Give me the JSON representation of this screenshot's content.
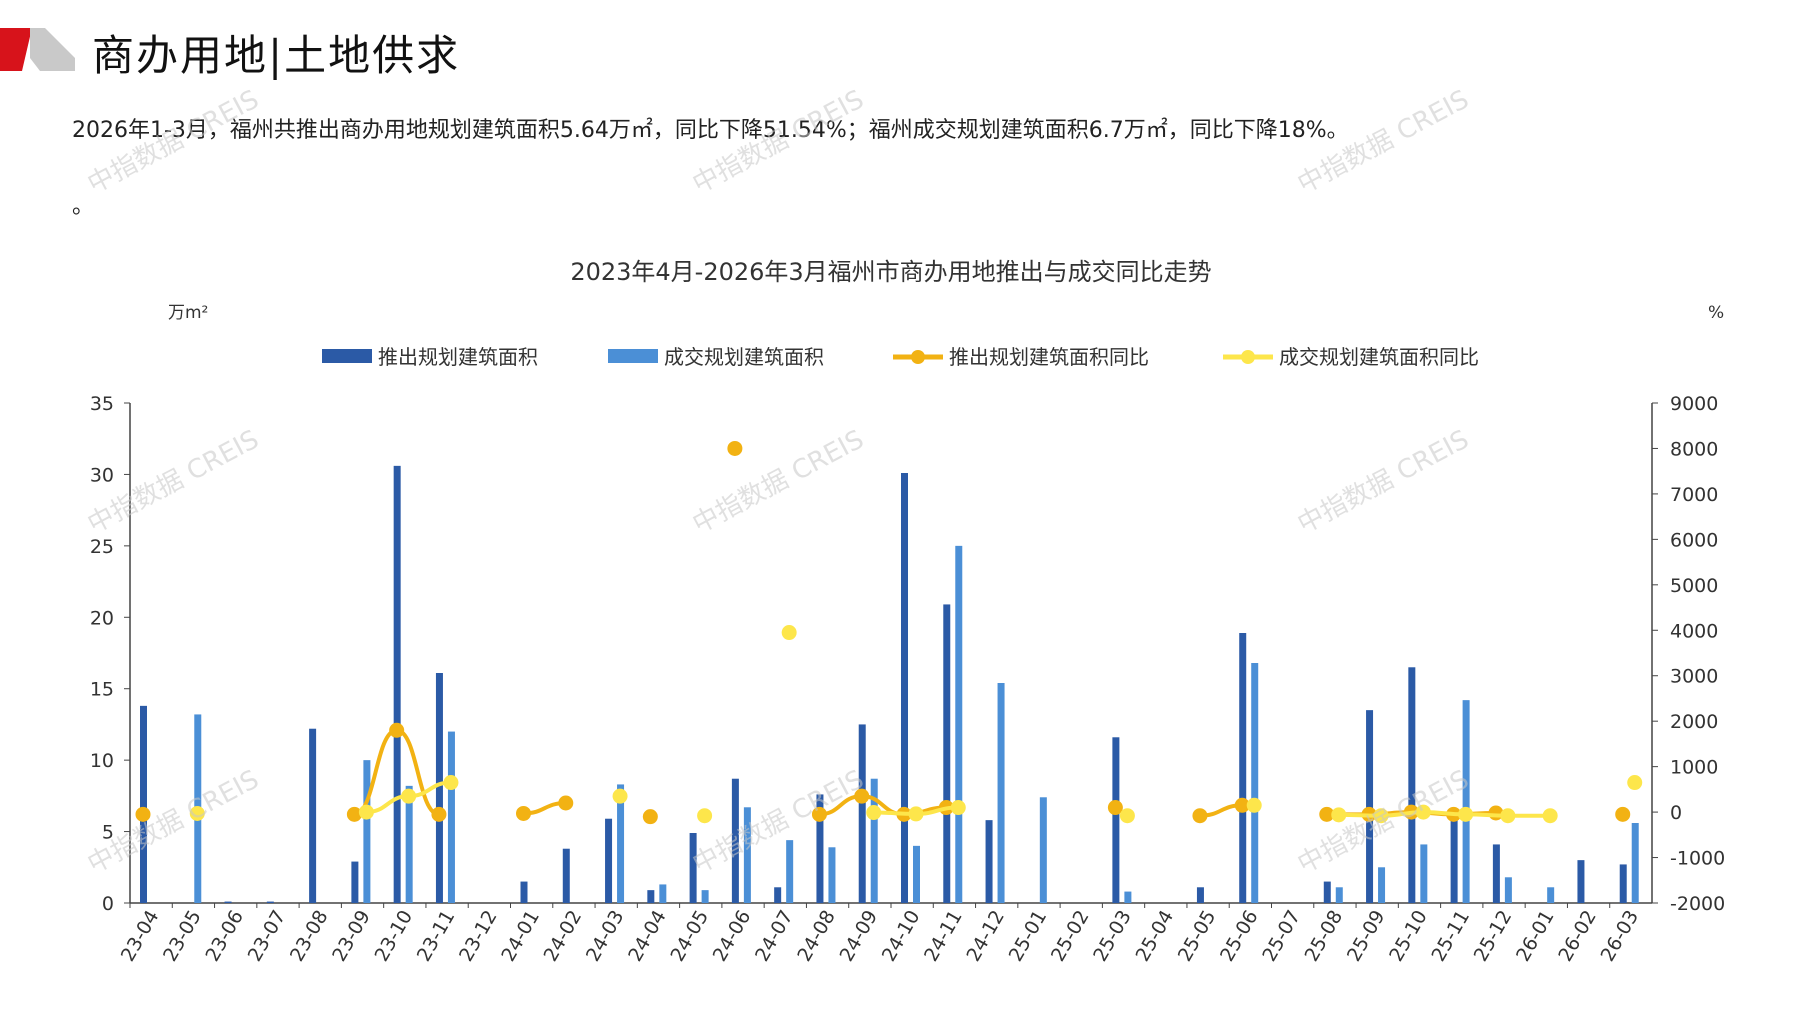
{
  "header": {
    "title": "商办用地|土地供求",
    "accent_colors": [
      "#d7131b",
      "#c9c9c9"
    ]
  },
  "summary": {
    "line1": "2026年1-3月，福州共推出商办用地规划建筑面积5.64万㎡，同比下降51.54%；福州成交规划建筑面积6.7万㎡，同比下降18%。",
    "line2": "。"
  },
  "watermark": "中指数据 CREIS",
  "chart_data": {
    "type": "bar",
    "title": "2023年4月-2026年3月福州市商办用地推出与成交同比走势",
    "ylabel_left": "万m²",
    "ylabel_right": "%",
    "ylim_left": [
      0,
      35
    ],
    "ylim_right": [
      -2000,
      9000
    ],
    "yticks_left": [
      0,
      5,
      10,
      15,
      20,
      25,
      30,
      35
    ],
    "yticks_right": [
      -2000,
      -1000,
      0,
      1000,
      2000,
      3000,
      4000,
      5000,
      6000,
      7000,
      8000,
      9000
    ],
    "legend_position": "top",
    "categories": [
      "23-04",
      "23-05",
      "23-06",
      "23-07",
      "23-08",
      "23-09",
      "23-10",
      "23-11",
      "23-12",
      "24-01",
      "24-02",
      "24-03",
      "24-04",
      "24-05",
      "24-06",
      "24-07",
      "24-08",
      "24-09",
      "24-10",
      "24-11",
      "24-12",
      "25-01",
      "25-02",
      "25-03",
      "25-04",
      "25-05",
      "25-06",
      "25-07",
      "25-08",
      "25-09",
      "25-10",
      "25-11",
      "25-12",
      "26-01",
      "26-02",
      "26-03"
    ],
    "series": [
      {
        "name": "推出规划建筑面积",
        "kind": "bar",
        "axis": "left",
        "color": "#2b5aa6",
        "values": [
          13.8,
          0,
          0.1,
          0.1,
          12.2,
          2.9,
          30.6,
          16.1,
          0,
          1.5,
          3.8,
          5.9,
          0.9,
          4.9,
          8.7,
          1.1,
          7.6,
          12.5,
          30.1,
          20.9,
          5.8,
          0,
          0,
          11.6,
          0,
          1.1,
          18.9,
          0,
          1.5,
          13.5,
          16.5,
          6.1,
          4.1,
          0,
          3.0,
          2.7
        ]
      },
      {
        "name": "成交规划建筑面积",
        "kind": "bar",
        "axis": "left",
        "color": "#4b8fd6",
        "values": [
          0,
          13.2,
          0,
          0,
          0,
          10.0,
          8.2,
          12.0,
          0,
          0,
          0,
          8.3,
          1.3,
          0.9,
          6.7,
          4.4,
          3.9,
          8.7,
          4.0,
          25.0,
          15.4,
          7.4,
          0,
          0.8,
          0,
          0,
          16.8,
          0,
          1.1,
          2.5,
          4.1,
          14.2,
          1.8,
          1.1,
          0,
          5.6
        ]
      },
      {
        "name": "推出规划建筑面积同比",
        "kind": "line",
        "axis": "right",
        "color": "#f2b213",
        "values": [
          -50,
          null,
          null,
          null,
          null,
          -50,
          1800,
          -50,
          null,
          -30,
          200,
          null,
          -100,
          null,
          8000,
          null,
          -50,
          350,
          -50,
          100,
          null,
          null,
          null,
          100,
          null,
          -80,
          150,
          null,
          -50,
          -50,
          0,
          -50,
          -20,
          null,
          null,
          -50
        ]
      },
      {
        "name": "成交规划建筑面积同比",
        "kind": "line",
        "axis": "right",
        "color": "#fde64b",
        "values": [
          null,
          -30,
          null,
          null,
          null,
          0,
          350,
          650,
          null,
          null,
          null,
          350,
          null,
          -80,
          null,
          3950,
          null,
          -10,
          -40,
          100,
          null,
          null,
          null,
          -80,
          null,
          null,
          150,
          null,
          -60,
          -80,
          0,
          -50,
          -80,
          -80,
          null,
          650
        ]
      }
    ]
  }
}
